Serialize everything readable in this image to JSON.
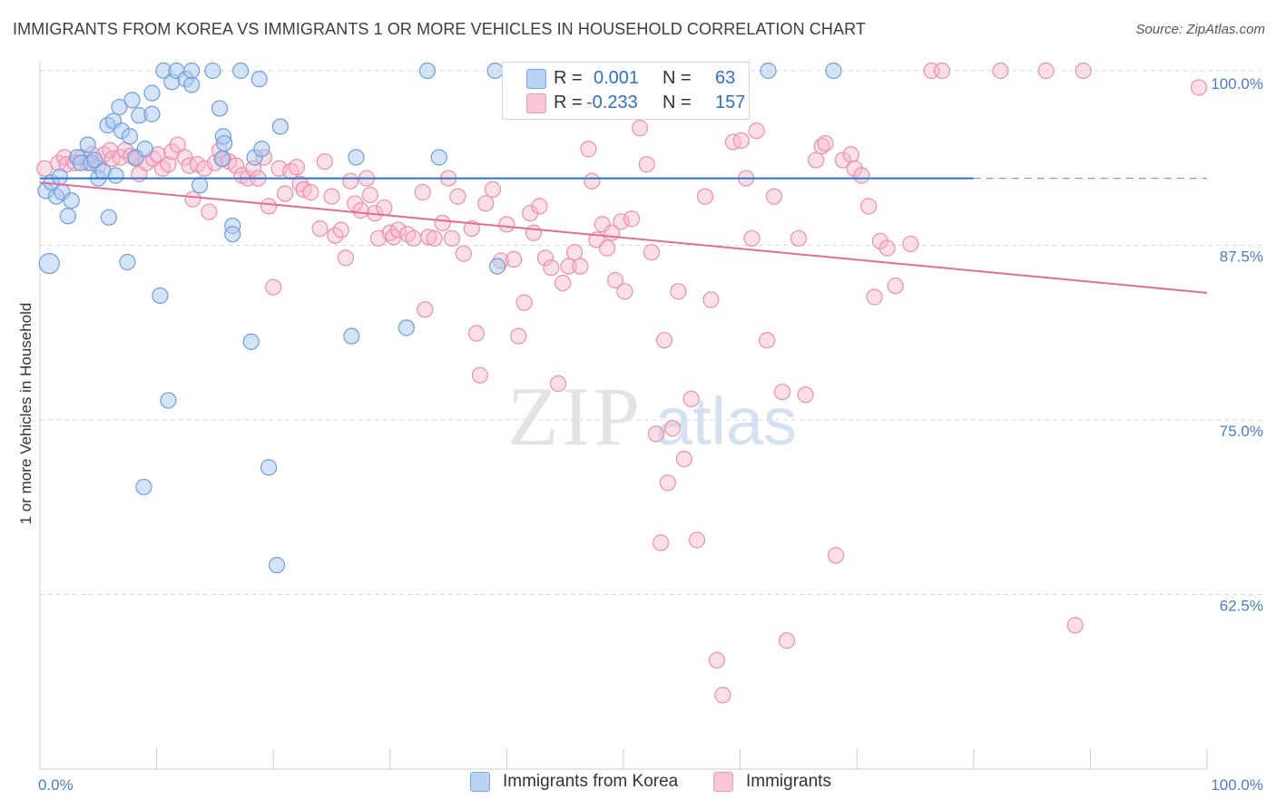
{
  "title": "IMMIGRANTS FROM KOREA VS IMMIGRANTS 1 OR MORE VEHICLES IN HOUSEHOLD CORRELATION CHART",
  "source": "Source: ZipAtlas.com",
  "watermark": {
    "zip": "ZIP",
    "atlas": "atlas"
  },
  "colors": {
    "blue_fill": "#a9c8ef",
    "blue_stroke": "#6a9fdd",
    "blue_line": "#2f6fcf",
    "pink_fill": "#f7b9cc",
    "pink_stroke": "#ec8eac",
    "pink_line": "#e46c98",
    "tick_label": "#4a7cc9",
    "grid": "#d9d9d9"
  },
  "legend": {
    "rows": [
      {
        "r_label": "R =",
        "r_value": "0.001",
        "n_label": "N =",
        "n_value": "63"
      },
      {
        "r_label": "R =",
        "r_value": "-0.233",
        "n_label": "N =",
        "n_value": "157"
      }
    ]
  },
  "bottom_legend": [
    "Immigrants from Korea",
    "Immigrants"
  ],
  "chart_data": {
    "type": "scatter",
    "title": "IMMIGRANTS FROM KOREA VS IMMIGRANTS 1 OR MORE VEHICLES IN HOUSEHOLD CORRELATION CHART",
    "xlabel": "",
    "ylabel": "1 or more Vehicles in Household",
    "xlim": [
      0,
      100
    ],
    "ylim": [
      50,
      100
    ],
    "x_tick_labels": [
      "0.0%",
      "100.0%"
    ],
    "y_ticks": [
      62.5,
      75.0,
      87.5,
      100.0
    ],
    "y_tick_labels": [
      "62.5%",
      "75.0%",
      "87.5%",
      "100.0%"
    ],
    "grid": true,
    "legend_position": "top-center",
    "series": [
      {
        "name": "Immigrants from Korea",
        "r": 0.001,
        "n": 63,
        "trend": {
          "x": [
            0,
            80
          ],
          "y": [
            92.3,
            92.3
          ],
          "dashed_extension_to": 100
        },
        "points": [
          [
            0.5,
            91.4
          ],
          [
            0.8,
            86.2
          ],
          [
            1.0,
            92.0
          ],
          [
            1.4,
            91.0
          ],
          [
            1.7,
            92.4
          ],
          [
            1.9,
            91.3
          ],
          [
            2.4,
            89.6
          ],
          [
            2.7,
            90.7
          ],
          [
            3.2,
            93.8
          ],
          [
            3.5,
            93.4
          ],
          [
            4.1,
            94.7
          ],
          [
            4.4,
            93.4
          ],
          [
            4.7,
            93.6
          ],
          [
            5.0,
            92.3
          ],
          [
            5.4,
            92.8
          ],
          [
            5.8,
            96.1
          ],
          [
            5.9,
            89.5
          ],
          [
            6.3,
            96.4
          ],
          [
            6.5,
            92.5
          ],
          [
            6.8,
            97.4
          ],
          [
            7.0,
            95.7
          ],
          [
            7.5,
            86.3
          ],
          [
            7.7,
            95.3
          ],
          [
            7.9,
            97.9
          ],
          [
            8.2,
            93.8
          ],
          [
            8.5,
            96.8
          ],
          [
            9.0,
            94.4
          ],
          [
            9.6,
            96.9
          ],
          [
            9.6,
            98.4
          ],
          [
            10.3,
            83.9
          ],
          [
            10.6,
            100.0
          ],
          [
            11.0,
            76.4
          ],
          [
            11.3,
            99.2
          ],
          [
            11.7,
            100.0
          ],
          [
            12.5,
            99.4
          ],
          [
            13.0,
            99.0
          ],
          [
            13.0,
            100.0
          ],
          [
            13.7,
            91.8
          ],
          [
            14.8,
            100.0
          ],
          [
            15.4,
            97.3
          ],
          [
            15.6,
            93.7
          ],
          [
            15.7,
            95.3
          ],
          [
            15.8,
            94.8
          ],
          [
            16.5,
            88.9
          ],
          [
            16.5,
            88.3
          ],
          [
            17.2,
            100.0
          ],
          [
            18.1,
            80.6
          ],
          [
            18.4,
            93.8
          ],
          [
            18.8,
            99.4
          ],
          [
            19.0,
            94.4
          ],
          [
            19.6,
            71.6
          ],
          [
            20.6,
            96.0
          ],
          [
            20.3,
            64.6
          ],
          [
            8.9,
            70.2
          ],
          [
            26.7,
            81.0
          ],
          [
            27.1,
            93.8
          ],
          [
            31.4,
            81.6
          ],
          [
            33.2,
            100.0
          ],
          [
            34.2,
            93.8
          ],
          [
            39.0,
            100.0
          ],
          [
            39.2,
            86.0
          ],
          [
            62.4,
            100.0
          ],
          [
            68.0,
            100.0
          ]
        ]
      },
      {
        "name": "Immigrants",
        "r": -0.233,
        "n": 157,
        "trend": {
          "x": [
            0,
            100
          ],
          "y": [
            92.0,
            84.1
          ]
        },
        "points": [
          [
            0.4,
            93.0
          ],
          [
            1.6,
            93.4
          ],
          [
            2.1,
            93.8
          ],
          [
            2.3,
            93.3
          ],
          [
            3.0,
            93.4
          ],
          [
            3.6,
            93.8
          ],
          [
            4.1,
            93.4
          ],
          [
            4.5,
            94.0
          ],
          [
            5.0,
            93.2
          ],
          [
            5.5,
            94.0
          ],
          [
            6.0,
            94.3
          ],
          [
            6.2,
            93.7
          ],
          [
            6.9,
            93.8
          ],
          [
            7.3,
            94.3
          ],
          [
            7.8,
            93.9
          ],
          [
            8.2,
            93.7
          ],
          [
            8.5,
            92.6
          ],
          [
            9.1,
            93.4
          ],
          [
            9.7,
            93.7
          ],
          [
            10.1,
            94.0
          ],
          [
            10.5,
            93.0
          ],
          [
            11.0,
            93.3
          ],
          [
            11.3,
            94.2
          ],
          [
            11.8,
            94.7
          ],
          [
            12.4,
            93.8
          ],
          [
            12.8,
            93.2
          ],
          [
            13.1,
            90.8
          ],
          [
            13.5,
            93.3
          ],
          [
            14.1,
            93.0
          ],
          [
            14.5,
            89.9
          ],
          [
            15.0,
            93.4
          ],
          [
            15.4,
            94.3
          ],
          [
            15.7,
            93.7
          ],
          [
            16.2,
            93.5
          ],
          [
            16.8,
            93.2
          ],
          [
            17.3,
            92.5
          ],
          [
            17.8,
            92.3
          ],
          [
            18.3,
            93.0
          ],
          [
            18.7,
            92.3
          ],
          [
            19.2,
            93.8
          ],
          [
            19.6,
            90.3
          ],
          [
            20.0,
            84.5
          ],
          [
            20.5,
            93.0
          ],
          [
            21.0,
            91.2
          ],
          [
            21.5,
            92.8
          ],
          [
            22.0,
            93.1
          ],
          [
            22.3,
            91.9
          ],
          [
            22.6,
            91.5
          ],
          [
            23.2,
            91.3
          ],
          [
            24.0,
            88.7
          ],
          [
            24.4,
            93.5
          ],
          [
            25.0,
            91.0
          ],
          [
            25.3,
            88.2
          ],
          [
            25.8,
            88.6
          ],
          [
            26.2,
            86.6
          ],
          [
            26.6,
            92.1
          ],
          [
            27.0,
            90.5
          ],
          [
            27.5,
            90.0
          ],
          [
            28.0,
            92.3
          ],
          [
            28.3,
            91.1
          ],
          [
            28.7,
            89.8
          ],
          [
            29.0,
            88.0
          ],
          [
            29.5,
            90.2
          ],
          [
            30.0,
            88.4
          ],
          [
            30.3,
            88.1
          ],
          [
            30.7,
            88.6
          ],
          [
            31.5,
            88.3
          ],
          [
            32.0,
            88.0
          ],
          [
            32.8,
            91.3
          ],
          [
            33.0,
            82.9
          ],
          [
            33.3,
            88.1
          ],
          [
            33.8,
            88.0
          ],
          [
            34.5,
            89.1
          ],
          [
            35.0,
            92.3
          ],
          [
            35.3,
            88.0
          ],
          [
            35.8,
            91.0
          ],
          [
            36.3,
            86.9
          ],
          [
            37.0,
            88.7
          ],
          [
            37.4,
            81.2
          ],
          [
            37.7,
            78.2
          ],
          [
            38.2,
            90.5
          ],
          [
            38.8,
            91.5
          ],
          [
            39.5,
            86.4
          ],
          [
            40.0,
            89.0
          ],
          [
            40.6,
            86.5
          ],
          [
            41.0,
            81.0
          ],
          [
            41.5,
            83.4
          ],
          [
            42.0,
            89.8
          ],
          [
            42.3,
            88.4
          ],
          [
            42.8,
            90.3
          ],
          [
            43.3,
            86.6
          ],
          [
            43.8,
            85.9
          ],
          [
            44.4,
            77.6
          ],
          [
            44.8,
            84.8
          ],
          [
            45.3,
            86.0
          ],
          [
            45.8,
            87.0
          ],
          [
            46.3,
            86.0
          ],
          [
            47.0,
            94.4
          ],
          [
            47.3,
            92.1
          ],
          [
            47.7,
            87.9
          ],
          [
            48.2,
            89.0
          ],
          [
            48.6,
            87.3
          ],
          [
            49.0,
            88.4
          ],
          [
            49.3,
            85.0
          ],
          [
            49.8,
            89.2
          ],
          [
            50.1,
            84.2
          ],
          [
            50.7,
            89.4
          ],
          [
            51.4,
            95.9
          ],
          [
            52.0,
            93.3
          ],
          [
            52.4,
            87.0
          ],
          [
            52.8,
            74.0
          ],
          [
            53.2,
            66.2
          ],
          [
            53.5,
            80.7
          ],
          [
            53.8,
            70.5
          ],
          [
            54.2,
            74.4
          ],
          [
            54.7,
            84.2
          ],
          [
            55.2,
            72.2
          ],
          [
            55.8,
            76.5
          ],
          [
            56.3,
            66.4
          ],
          [
            57.0,
            91.0
          ],
          [
            57.5,
            83.6
          ],
          [
            58.0,
            57.8
          ],
          [
            58.5,
            55.3
          ],
          [
            59.4,
            94.9
          ],
          [
            60.1,
            95.0
          ],
          [
            60.5,
            92.3
          ],
          [
            61.0,
            88.0
          ],
          [
            61.4,
            95.7
          ],
          [
            62.3,
            80.7
          ],
          [
            62.9,
            91.0
          ],
          [
            63.6,
            77.0
          ],
          [
            64.0,
            59.2
          ],
          [
            65.0,
            88.0
          ],
          [
            65.6,
            76.8
          ],
          [
            66.5,
            93.6
          ],
          [
            67.0,
            94.6
          ],
          [
            67.3,
            94.8
          ],
          [
            68.2,
            65.3
          ],
          [
            68.8,
            93.6
          ],
          [
            69.5,
            94.0
          ],
          [
            69.8,
            93.0
          ],
          [
            70.4,
            92.5
          ],
          [
            71.0,
            90.3
          ],
          [
            71.5,
            83.8
          ],
          [
            72.0,
            87.8
          ],
          [
            72.6,
            87.3
          ],
          [
            73.3,
            84.6
          ],
          [
            74.6,
            87.6
          ],
          [
            76.4,
            100.0
          ],
          [
            77.3,
            100.0
          ],
          [
            82.3,
            100.0
          ],
          [
            86.2,
            100.0
          ],
          [
            89.4,
            100.0
          ],
          [
            88.7,
            60.3
          ],
          [
            99.3,
            98.8
          ]
        ]
      }
    ]
  }
}
